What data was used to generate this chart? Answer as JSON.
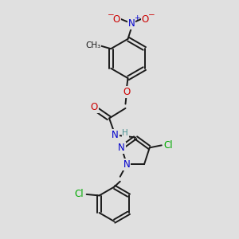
{
  "bg_color": "#e0e0e0",
  "bond_color": "#1a1a1a",
  "bond_width": 1.4,
  "atom_colors": {
    "O": "#cc0000",
    "N": "#0000cc",
    "Cl": "#00aa00",
    "H": "#4a9090",
    "C": "#1a1a1a"
  },
  "font_size_atom": 8.5,
  "font_size_small": 7.5,
  "font_size_charge": 6.5
}
